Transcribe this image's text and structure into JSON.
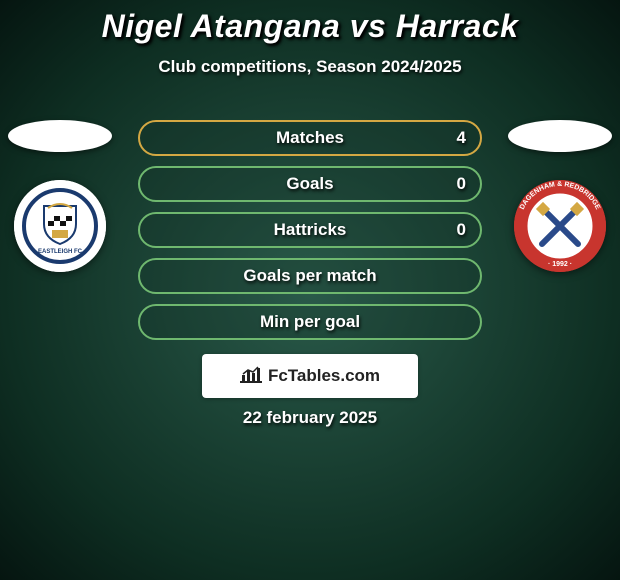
{
  "title": "Nigel Atangana vs Harrack",
  "subtitle": "Club competitions, Season 2024/2025",
  "date": "22 february 2025",
  "watermark": "FcTables.com",
  "colors": {
    "bg_center": "#2a5a4a",
    "bg_outer": "#0e2e22",
    "row_bg": "rgba(20,50,40,0.3)"
  },
  "stats": [
    {
      "label": "Matches",
      "value": "4",
      "border": "#d4a843"
    },
    {
      "label": "Goals",
      "value": "0",
      "border": "#6fb86f"
    },
    {
      "label": "Hattricks",
      "value": "0",
      "border": "#6fb86f"
    },
    {
      "label": "Goals per match",
      "value": "",
      "border": "#6fb86f"
    },
    {
      "label": "Min per goal",
      "value": "",
      "border": "#6fb86f"
    }
  ],
  "badges": {
    "left": {
      "bg": "#ffffff",
      "ring": "#1a3a6e",
      "accent": "#d4a843",
      "name": "EASTLEIGH FC"
    },
    "right": {
      "bg": "#c8352e",
      "ring": "#ffffff",
      "accent": "#2a4a8a",
      "name": "DAGENHAM & REDBRIDGE"
    }
  }
}
